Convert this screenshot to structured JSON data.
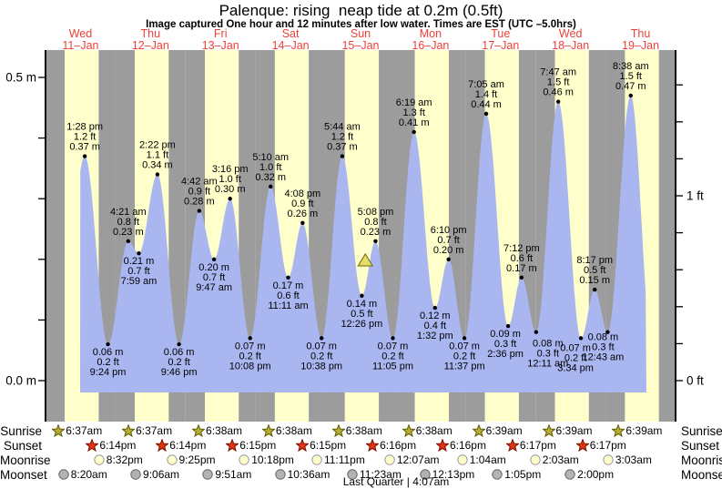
{
  "title": "Palenque: rising  neap tide at 0.2m (0.5ft)",
  "subtitle": "Image captured One hour and 12 minutes after low water. Times are EST (UTC –5.0hrs)",
  "axis": {
    "left_labels": [
      "0.5 m",
      "0.0 m"
    ],
    "right_labels": [
      "1 ft",
      "0 ft"
    ]
  },
  "colors": {
    "day_band": "#ffffcc",
    "night_band": "#9c9c9c",
    "tide_fill": "#aab6f0",
    "day_label": "#ee3f38",
    "sunrise_icon": "#b5ad35",
    "sunrise_icon_border": "#5e5a00",
    "sunset_icon": "#e03414",
    "sunset_icon_border": "#7a1000",
    "moonrise_icon": "#ffffcc",
    "moonrise_icon_border": "#999999",
    "moonset_icon": "#b3b3b3",
    "moonset_icon_border": "#666666"
  },
  "chart_data": {
    "type": "area",
    "title": "Palenque: rising  neap tide at 0.2m (0.5ft)",
    "x_days": [
      {
        "name": "Wed",
        "date": "11–Jan"
      },
      {
        "name": "Thu",
        "date": "12–Jan"
      },
      {
        "name": "Fri",
        "date": "13–Jan"
      },
      {
        "name": "Sat",
        "date": "14–Jan"
      },
      {
        "name": "Sun",
        "date": "15–Jan"
      },
      {
        "name": "Mon",
        "date": "16–Jan"
      },
      {
        "name": "Tue",
        "date": "17–Jan"
      },
      {
        "name": "Wed",
        "date": "18–Jan"
      },
      {
        "name": "Thu",
        "date": "19–Jan"
      }
    ],
    "y_left_ticks_m": [
      0.0,
      0.1,
      0.2,
      0.3,
      0.4,
      0.5
    ],
    "y_right_ticks_ft_step": 0.2,
    "ylim_m": [
      -0.02,
      0.55
    ],
    "extremes": [
      {
        "day": 0,
        "kind": "high",
        "time": "1:28 pm",
        "ft": "1.2 ft",
        "m": "0.37 m"
      },
      {
        "day": 0,
        "kind": "low",
        "time": "9:24 pm",
        "ft": "0.2 ft",
        "m": "0.06 m"
      },
      {
        "day": 1,
        "kind": "high",
        "time": "4:21 am",
        "ft": "0.8 ft",
        "m": "0.23 m"
      },
      {
        "day": 1,
        "kind": "low",
        "time": "7:59 am",
        "ft": "0.7 ft",
        "m": "0.21 m"
      },
      {
        "day": 1,
        "kind": "high",
        "time": "2:22 pm",
        "ft": "1.1 ft",
        "m": "0.34 m"
      },
      {
        "day": 1,
        "kind": "low",
        "time": "9:46 pm",
        "ft": "0.2 ft",
        "m": "0.06 m"
      },
      {
        "day": 2,
        "kind": "high",
        "time": "4:42 am",
        "ft": "0.9 ft",
        "m": "0.28 m"
      },
      {
        "day": 2,
        "kind": "low",
        "time": "9:47 am",
        "ft": "0.7 ft",
        "m": "0.20 m"
      },
      {
        "day": 2,
        "kind": "high",
        "time": "3:16 pm",
        "ft": "1.0 ft",
        "m": "0.30 m"
      },
      {
        "day": 2,
        "kind": "low",
        "time": "10:08 pm",
        "ft": "0.2 ft",
        "m": "0.07 m"
      },
      {
        "day": 3,
        "kind": "high",
        "time": "5:10 am",
        "ft": "1.0 ft",
        "m": "0.32 m"
      },
      {
        "day": 3,
        "kind": "low",
        "time": "11:11 am",
        "ft": "0.6 ft",
        "m": "0.17 m"
      },
      {
        "day": 3,
        "kind": "high",
        "time": "4:08 pm",
        "ft": "0.9 ft",
        "m": "0.26 m"
      },
      {
        "day": 3,
        "kind": "low",
        "time": "10:38 pm",
        "ft": "0.2 ft",
        "m": "0.07 m"
      },
      {
        "day": 4,
        "kind": "high",
        "time": "5:44 am",
        "ft": "1.2 ft",
        "m": "0.37 m"
      },
      {
        "day": 4,
        "kind": "low",
        "time": "12:26 pm",
        "ft": "0.5 ft",
        "m": "0.14 m"
      },
      {
        "day": 4,
        "kind": "high",
        "time": "5:08 pm",
        "ft": "0.8 ft",
        "m": "0.23 m"
      },
      {
        "day": 4,
        "kind": "low",
        "time": "11:05 pm",
        "ft": "0.2 ft",
        "m": "0.07 m"
      },
      {
        "day": 5,
        "kind": "high",
        "time": "6:19 am",
        "ft": "1.3 ft",
        "m": "0.41 m"
      },
      {
        "day": 5,
        "kind": "low",
        "time": "1:32 pm",
        "ft": "0.4 ft",
        "m": "0.12 m"
      },
      {
        "day": 5,
        "kind": "high",
        "time": "6:10 pm",
        "ft": "0.7 ft",
        "m": "0.20 m"
      },
      {
        "day": 5,
        "kind": "low",
        "time": "11:37 pm",
        "ft": "0.2 ft",
        "m": "0.07 m"
      },
      {
        "day": 6,
        "kind": "high",
        "time": "7:05 am",
        "ft": "1.4 ft",
        "m": "0.44 m"
      },
      {
        "day": 6,
        "kind": "low",
        "time": "2:36 pm",
        "ft": "0.3 ft",
        "m": "0.09 m"
      },
      {
        "day": 6,
        "kind": "high",
        "time": "7:12 pm",
        "ft": "0.6 ft",
        "m": "0.17 m"
      },
      {
        "day": 7,
        "kind": "low",
        "time": "12:11 am",
        "ft": "0.3 ft",
        "m": "0.08 m"
      },
      {
        "day": 7,
        "kind": "high",
        "time": "7:47 am",
        "ft": "1.5 ft",
        "m": "0.46 m"
      },
      {
        "day": 7,
        "kind": "low",
        "time": "3:34 pm",
        "ft": "0.2 ft",
        "m": "0.07 m"
      },
      {
        "day": 7,
        "kind": "high",
        "time": "8:17 pm",
        "ft": "0.5 ft",
        "m": "0.15 m"
      },
      {
        "day": 8,
        "kind": "low",
        "time": "12:43 am",
        "ft": "0.3 ft",
        "m": "0.08 m"
      },
      {
        "day": 8,
        "kind": "high",
        "time": "8:38 am",
        "ft": "1.5 ft",
        "m": "0.47 m"
      }
    ],
    "current_time_marker": {
      "day": 4,
      "time": "1:38 pm",
      "symbol": "triangle"
    }
  },
  "astro": {
    "rows": [
      {
        "label": "Sunrise",
        "icon": "sunrise-star",
        "events": [
          {
            "day": 0,
            "time": "6:37am"
          },
          {
            "day": 1,
            "time": "6:37am"
          },
          {
            "day": 2,
            "time": "6:38am"
          },
          {
            "day": 3,
            "time": "6:38am"
          },
          {
            "day": 4,
            "time": "6:38am"
          },
          {
            "day": 5,
            "time": "6:38am"
          },
          {
            "day": 6,
            "time": "6:39am"
          },
          {
            "day": 7,
            "time": "6:39am"
          },
          {
            "day": 8,
            "time": "6:39am"
          }
        ]
      },
      {
        "label": "Sunset",
        "icon": "sunset-star",
        "events": [
          {
            "day": 0,
            "time": "6:14pm"
          },
          {
            "day": 1,
            "time": "6:14pm"
          },
          {
            "day": 2,
            "time": "6:15pm"
          },
          {
            "day": 3,
            "time": "6:15pm"
          },
          {
            "day": 4,
            "time": "6:16pm"
          },
          {
            "day": 5,
            "time": "6:16pm"
          },
          {
            "day": 6,
            "time": "6:17pm"
          },
          {
            "day": 7,
            "time": "6:17pm"
          }
        ]
      },
      {
        "label": "Moonrise",
        "icon": "moonrise-circle",
        "events": [
          {
            "day": 0,
            "time": "8:32pm"
          },
          {
            "day": 1,
            "time": "9:25pm"
          },
          {
            "day": 2,
            "time": "10:18pm"
          },
          {
            "day": 3,
            "time": "11:11pm"
          },
          {
            "day": 5,
            "time": "12:07am"
          },
          {
            "day": 6,
            "time": "1:04am"
          },
          {
            "day": 7,
            "time": "2:03am"
          },
          {
            "day": 8,
            "time": "3:03am"
          }
        ]
      },
      {
        "label": "Moonset",
        "icon": "moonset-circle",
        "events": [
          {
            "day": 0,
            "time": "8:20am"
          },
          {
            "day": 1,
            "time": "9:06am"
          },
          {
            "day": 2,
            "time": "9:51am"
          },
          {
            "day": 3,
            "time": "10:36am"
          },
          {
            "day": 4,
            "time": "11:23am"
          },
          {
            "day": 5,
            "time": "12:13pm"
          },
          {
            "day": 6,
            "time": "1:05pm"
          },
          {
            "day": 7,
            "time": "2:00pm"
          }
        ]
      }
    ],
    "footer": "Last Quarter | 4:07am"
  }
}
